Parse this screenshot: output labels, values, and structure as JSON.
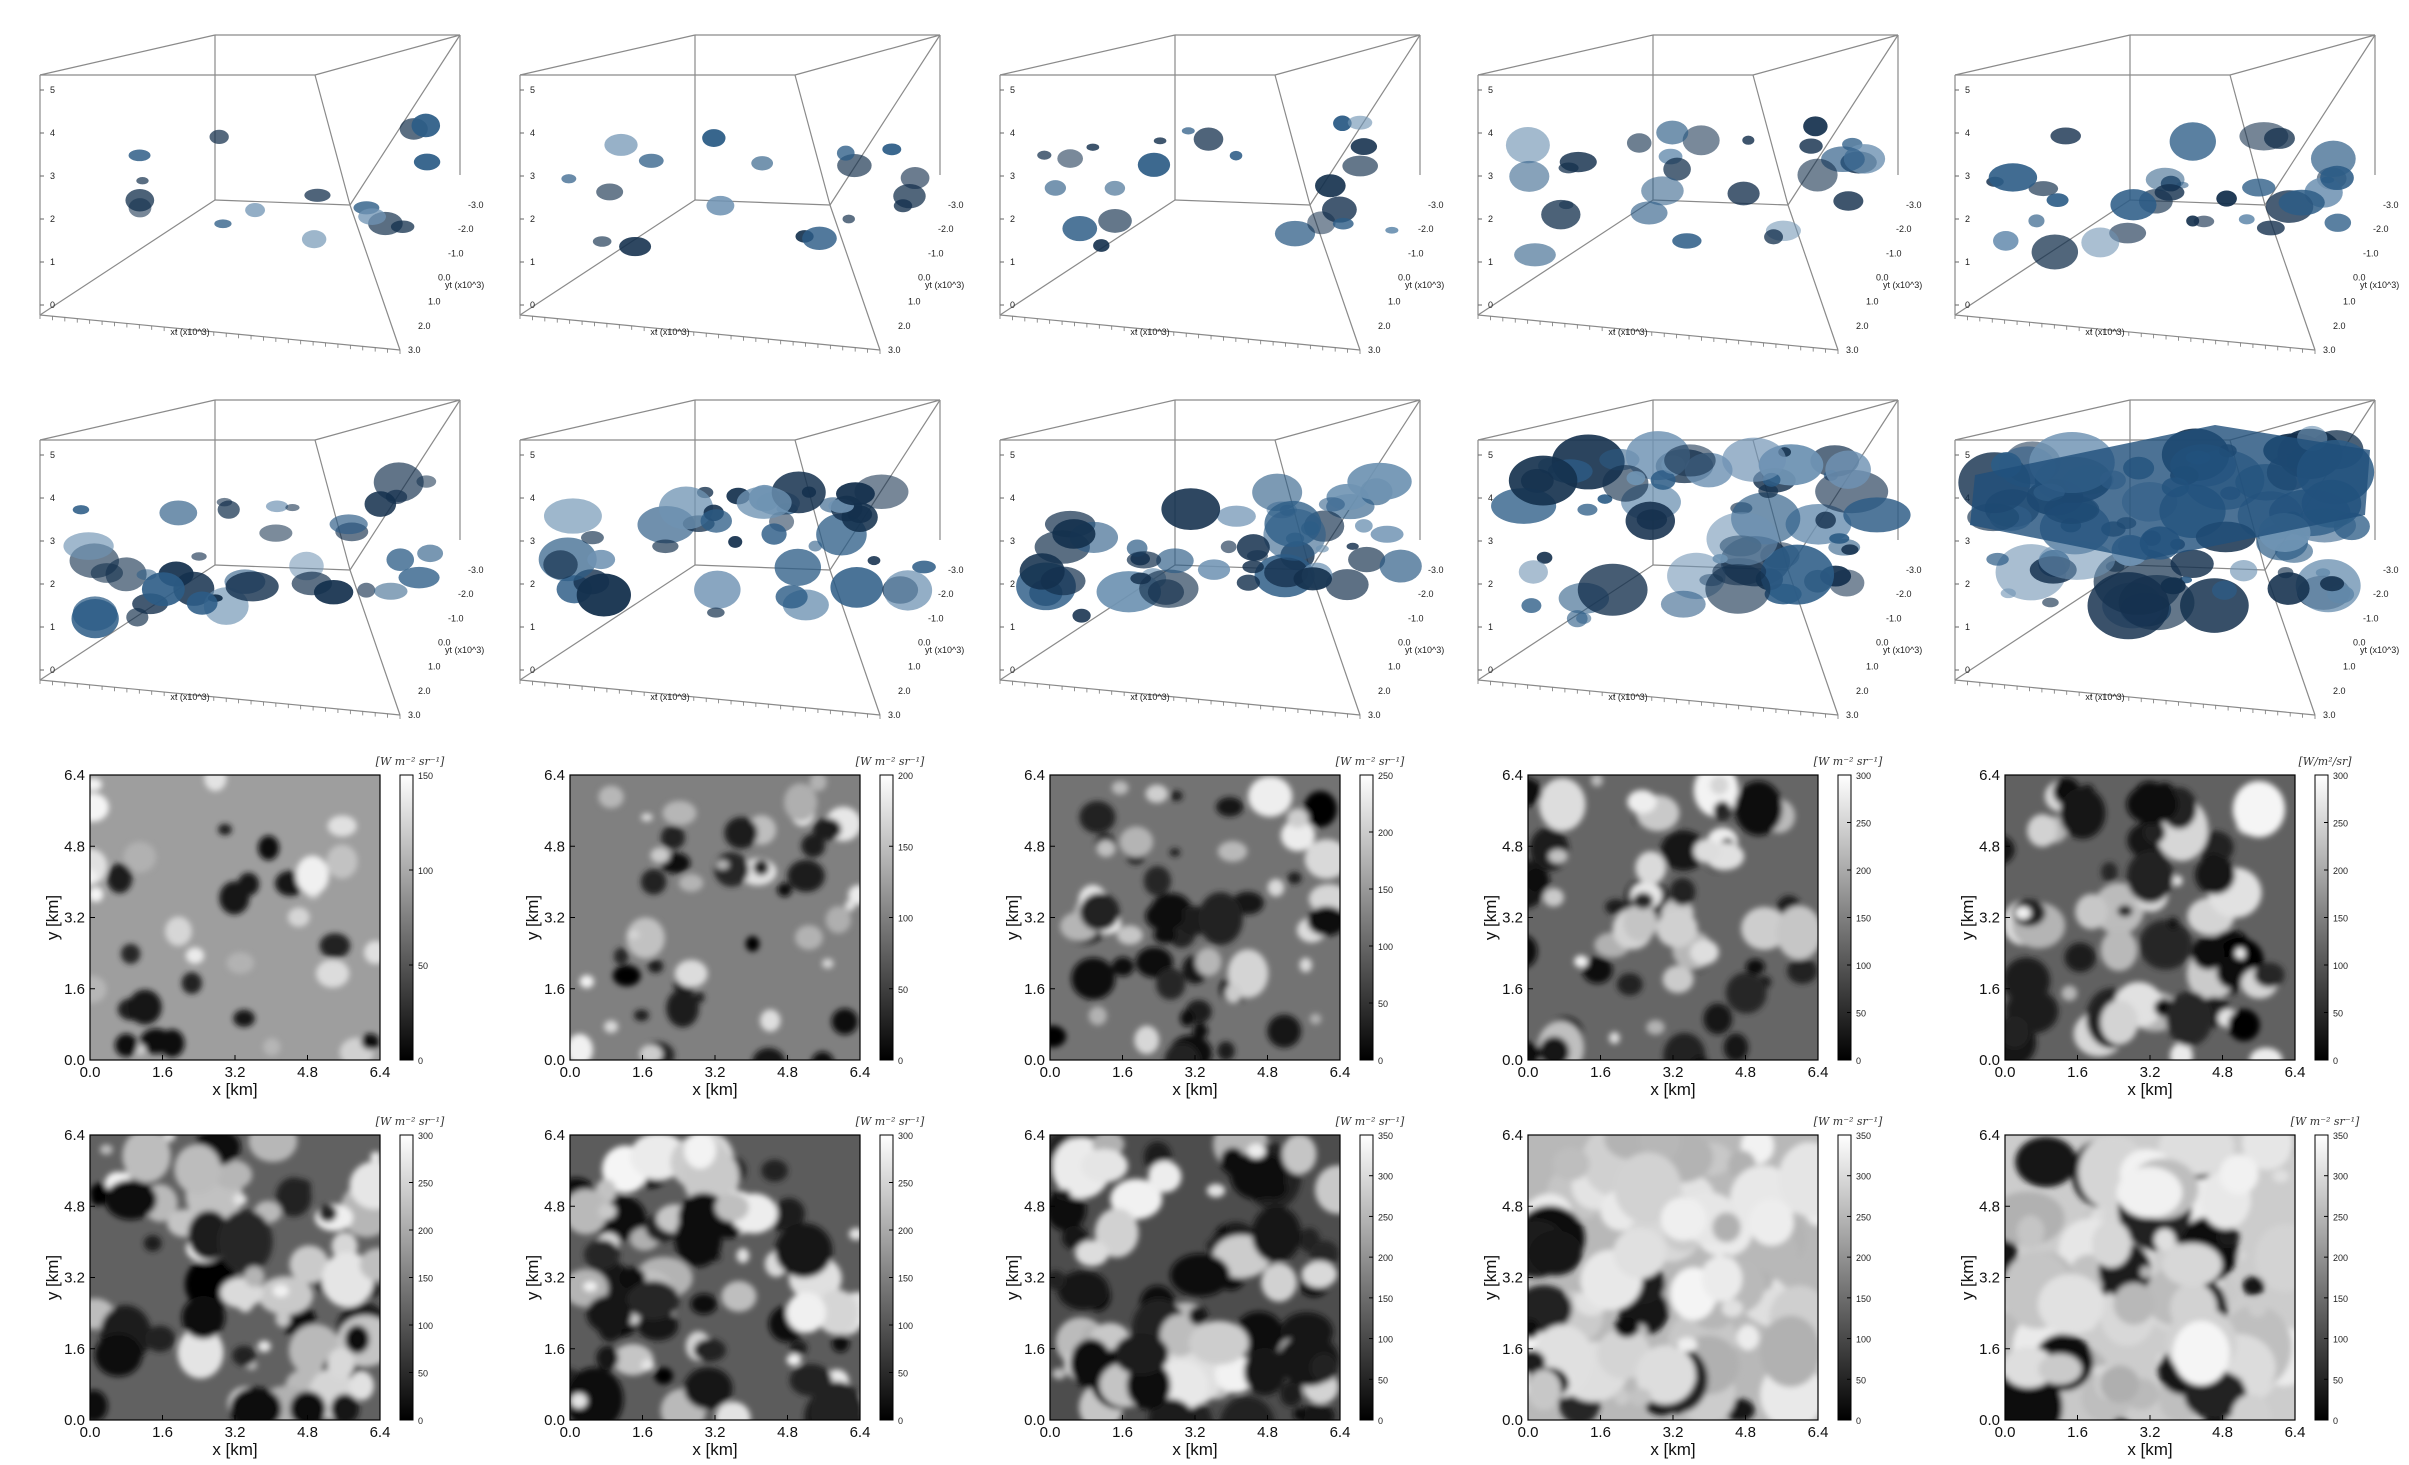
{
  "figure": {
    "rows3d": 2,
    "rows2d": 2,
    "cols": 5
  },
  "volume_panels": {
    "axis_labels": {
      "x": "xt (x10^3)",
      "y": "yt (x10^3)"
    },
    "y_ticks": [
      "-3.0",
      "-2.0",
      "-1.0",
      "0.0",
      "1.0",
      "2.0",
      "3.0"
    ],
    "z_ticks": [
      "5",
      "4",
      "3",
      "2",
      "1",
      "0"
    ],
    "cloud_color": "#1f4f7a",
    "cloud_cover": [
      0.06,
      0.08,
      0.15,
      0.22,
      0.3,
      0.38,
      0.45,
      0.55,
      0.7,
      0.95
    ]
  },
  "chart_data": [
    {
      "type": "heatmap",
      "xlabel": "x [km]",
      "ylabel": "y [km]",
      "xticks": [
        "0.0",
        "1.6",
        "3.2",
        "4.8",
        "6.4"
      ],
      "yticks": [
        "0.0",
        "1.6",
        "3.2",
        "4.8",
        "6.4"
      ],
      "xlim": [
        0,
        6.4
      ],
      "ylim": [
        0,
        6.4
      ],
      "colorbar": {
        "label": "[W m⁻² sr⁻¹]",
        "min": 0,
        "max": 150,
        "ticks": [
          "0",
          "50",
          "100",
          "150"
        ]
      },
      "background_level": 0.62,
      "cloud_fraction": 0.15
    },
    {
      "type": "heatmap",
      "xlabel": "x [km]",
      "ylabel": "y [km]",
      "xticks": [
        "0.0",
        "1.6",
        "3.2",
        "4.8",
        "6.4"
      ],
      "yticks": [
        "0.0",
        "1.6",
        "3.2",
        "4.8",
        "6.4"
      ],
      "xlim": [
        0,
        6.4
      ],
      "ylim": [
        0,
        6.4
      ],
      "colorbar": {
        "label": "[W m⁻² sr⁻¹]",
        "min": 0,
        "max": 200,
        "ticks": [
          "0",
          "50",
          "100",
          "150",
          "200"
        ]
      },
      "background_level": 0.5,
      "cloud_fraction": 0.25
    },
    {
      "type": "heatmap",
      "xlabel": "x [km]",
      "ylabel": "y [km]",
      "xticks": [
        "0.0",
        "1.6",
        "3.2",
        "4.8",
        "6.4"
      ],
      "yticks": [
        "0.0",
        "1.6",
        "3.2",
        "4.8",
        "6.4"
      ],
      "xlim": [
        0,
        6.4
      ],
      "ylim": [
        0,
        6.4
      ],
      "colorbar": {
        "label": "[W m⁻² sr⁻¹]",
        "min": 0,
        "max": 250,
        "ticks": [
          "0",
          "50",
          "100",
          "150",
          "200",
          "250"
        ]
      },
      "background_level": 0.45,
      "cloud_fraction": 0.35
    },
    {
      "type": "heatmap",
      "xlabel": "x [km]",
      "ylabel": "y [km]",
      "xticks": [
        "0.0",
        "1.6",
        "3.2",
        "4.8",
        "6.4"
      ],
      "yticks": [
        "0.0",
        "1.6",
        "3.2",
        "4.8",
        "6.4"
      ],
      "xlim": [
        0,
        6.4
      ],
      "ylim": [
        0,
        6.4
      ],
      "colorbar": {
        "label": "[W m⁻² sr⁻¹]",
        "min": 0,
        "max": 300,
        "ticks": [
          "0",
          "50",
          "100",
          "150",
          "200",
          "250",
          "300"
        ]
      },
      "background_level": 0.4,
      "cloud_fraction": 0.42
    },
    {
      "type": "heatmap",
      "xlabel": "x [km]",
      "ylabel": "y [km]",
      "xticks": [
        "0.0",
        "1.6",
        "3.2",
        "4.8",
        "6.4"
      ],
      "yticks": [
        "0.0",
        "1.6",
        "3.2",
        "4.8",
        "6.4"
      ],
      "xlim": [
        0,
        6.4
      ],
      "ylim": [
        0,
        6.4
      ],
      "colorbar": {
        "label": "[W/m²/sr]",
        "min": 0,
        "max": 300,
        "ticks": [
          "0",
          "50",
          "100",
          "150",
          "200",
          "250",
          "300"
        ]
      },
      "background_level": 0.38,
      "cloud_fraction": 0.5
    },
    {
      "type": "heatmap",
      "xlabel": "x [km]",
      "ylabel": "y [km]",
      "xticks": [
        "0.0",
        "1.6",
        "3.2",
        "4.8",
        "6.4"
      ],
      "yticks": [
        "0.0",
        "1.6",
        "3.2",
        "4.8",
        "6.4"
      ],
      "xlim": [
        0,
        6.4
      ],
      "ylim": [
        0,
        6.4
      ],
      "colorbar": {
        "label": "[W m⁻² sr⁻¹]",
        "min": 0,
        "max": 300,
        "ticks": [
          "0",
          "50",
          "100",
          "150",
          "200",
          "250",
          "300"
        ]
      },
      "background_level": 0.38,
      "cloud_fraction": 0.55
    },
    {
      "type": "heatmap",
      "xlabel": "x [km]",
      "ylabel": "y [km]",
      "xticks": [
        "0.0",
        "1.6",
        "3.2",
        "4.8",
        "6.4"
      ],
      "yticks": [
        "0.0",
        "1.6",
        "3.2",
        "4.8",
        "6.4"
      ],
      "xlim": [
        0,
        6.4
      ],
      "ylim": [
        0,
        6.4
      ],
      "colorbar": {
        "label": "[W m⁻² sr⁻¹]",
        "min": 0,
        "max": 300,
        "ticks": [
          "0",
          "50",
          "100",
          "150",
          "200",
          "250",
          "300"
        ]
      },
      "background_level": 0.36,
      "cloud_fraction": 0.58
    },
    {
      "type": "heatmap",
      "xlabel": "x [km]",
      "ylabel": "y [km]",
      "xticks": [
        "0.0",
        "1.6",
        "3.2",
        "4.8",
        "6.4"
      ],
      "yticks": [
        "0.0",
        "1.6",
        "3.2",
        "4.8",
        "6.4"
      ],
      "xlim": [
        0,
        6.4
      ],
      "ylim": [
        0,
        6.4
      ],
      "colorbar": {
        "label": "[W m⁻² sr⁻¹]",
        "min": 0,
        "max": 350,
        "ticks": [
          "0",
          "50",
          "100",
          "150",
          "200",
          "250",
          "300",
          "350"
        ]
      },
      "background_level": 0.3,
      "cloud_fraction": 0.62
    },
    {
      "type": "heatmap",
      "xlabel": "x [km]",
      "ylabel": "y [km]",
      "xticks": [
        "0.0",
        "1.6",
        "3.2",
        "4.8",
        "6.4"
      ],
      "yticks": [
        "0.0",
        "1.6",
        "3.2",
        "4.8",
        "6.4"
      ],
      "xlim": [
        0,
        6.4
      ],
      "ylim": [
        0,
        6.4
      ],
      "colorbar": {
        "label": "[W m⁻² sr⁻¹]",
        "min": 0,
        "max": 350,
        "ticks": [
          "0",
          "50",
          "100",
          "150",
          "200",
          "250",
          "300",
          "350"
        ]
      },
      "background_level": 0.72,
      "cloud_fraction": 0.8
    },
    {
      "type": "heatmap",
      "xlabel": "x [km]",
      "ylabel": "y [km]",
      "xticks": [
        "0.0",
        "1.6",
        "3.2",
        "4.8",
        "6.4"
      ],
      "yticks": [
        "0.0",
        "1.6",
        "3.2",
        "4.8",
        "6.4"
      ],
      "xlim": [
        0,
        6.4
      ],
      "ylim": [
        0,
        6.4
      ],
      "colorbar": {
        "label": "[W m⁻² sr⁻¹]",
        "min": 0,
        "max": 350,
        "ticks": [
          "0",
          "50",
          "100",
          "150",
          "200",
          "250",
          "300",
          "350"
        ]
      },
      "background_level": 0.8,
      "cloud_fraction": 0.9
    }
  ]
}
